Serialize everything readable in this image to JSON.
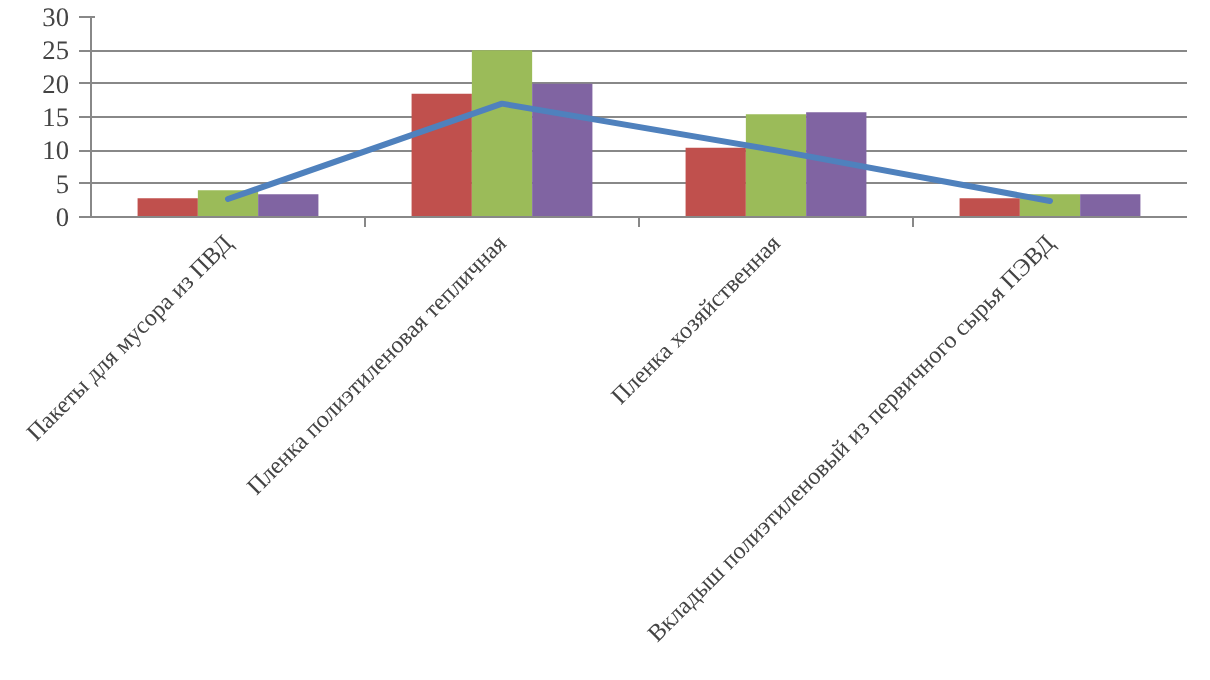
{
  "chart_data": {
    "type": "bar",
    "categories": [
      "Пакеты для мусора из ПВД",
      "Пленка полиэтиленовая тепличная",
      "Пленка хозяйственная",
      "Вкладыш полиэтиленовый из первичного сырья ПЭВД"
    ],
    "series": [
      {
        "color": "#c0504d",
        "values": [
          2.8,
          18.5,
          10.4,
          2.8
        ]
      },
      {
        "color": "#9bbb59",
        "values": [
          4,
          25,
          15.4,
          3.4
        ]
      },
      {
        "color": "#8064a2",
        "values": [
          3.4,
          20,
          15.7,
          3.4
        ]
      },
      {
        "type": "line",
        "color": "#4f81bd",
        "values": [
          2.7,
          17,
          10,
          2.4
        ]
      }
    ],
    "ylim": [
      0,
      30
    ],
    "yticks": [
      0,
      5,
      10,
      15,
      20,
      25,
      30
    ],
    "grid": "y",
    "marker": "none",
    "line_style": "solid"
  }
}
